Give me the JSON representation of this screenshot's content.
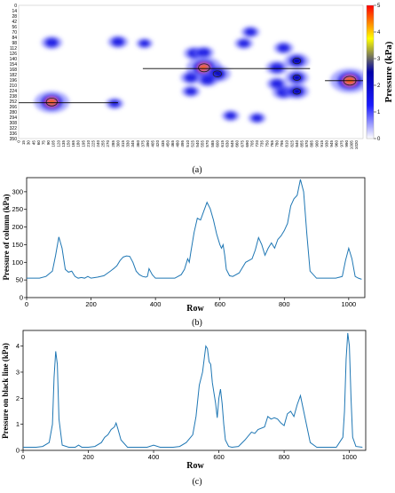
{
  "chart_data": [
    {
      "panel": "(a)",
      "type": "heatmap",
      "colorbar_label": "Pressure (kPa)",
      "colorbar_range": [
        0,
        5
      ],
      "colorbar_ticks": [
        0,
        1,
        2,
        3,
        4,
        5
      ],
      "colormap": [
        "#ffffff",
        "#1a1aff",
        "#0000a8",
        "#ffff00",
        "#ff0000"
      ],
      "y_ticks": [
        0,
        14,
        28,
        42,
        56,
        70,
        84,
        98,
        112,
        126,
        140,
        154,
        168,
        182,
        196,
        210,
        224,
        238,
        252,
        266,
        280,
        294,
        308,
        322,
        336,
        350
      ],
      "x_ticks": [
        0,
        15,
        30,
        45,
        60,
        75,
        90,
        105,
        120,
        135,
        150,
        165,
        180,
        195,
        210,
        225,
        240,
        255,
        270,
        285,
        300,
        315,
        330,
        345,
        360,
        375,
        390,
        405,
        420,
        435,
        450,
        465,
        480,
        495,
        510,
        525,
        540,
        555,
        570,
        585,
        600,
        615,
        630,
        645,
        660,
        675,
        690,
        705,
        720,
        735,
        750,
        765,
        780,
        795,
        810,
        825,
        840,
        855,
        870,
        885,
        900,
        915,
        930,
        945,
        960,
        975,
        990,
        1005,
        1020
      ],
      "xlim": [
        0,
        1040
      ],
      "ylim": [
        0,
        350
      ],
      "hotspots": [
        {
          "x": 100,
          "y": 254,
          "value": 3.8
        },
        {
          "x": 100,
          "y": 98,
          "value": 1.6
        },
        {
          "x": 300,
          "y": 96,
          "value": 1.5
        },
        {
          "x": 290,
          "y": 258,
          "value": 1.1
        },
        {
          "x": 560,
          "y": 164,
          "value": 3.9
        },
        {
          "x": 600,
          "y": 180,
          "value": 2.5
        },
        {
          "x": 530,
          "y": 126,
          "value": 1.6
        },
        {
          "x": 560,
          "y": 124,
          "value": 1.4
        },
        {
          "x": 520,
          "y": 190,
          "value": 1.6
        },
        {
          "x": 570,
          "y": 196,
          "value": 1.7
        },
        {
          "x": 520,
          "y": 226,
          "value": 1.2
        },
        {
          "x": 680,
          "y": 100,
          "value": 1.2
        },
        {
          "x": 700,
          "y": 70,
          "value": 1.2
        },
        {
          "x": 640,
          "y": 290,
          "value": 1.1
        },
        {
          "x": 720,
          "y": 296,
          "value": 1.1
        },
        {
          "x": 800,
          "y": 112,
          "value": 1.4
        },
        {
          "x": 840,
          "y": 146,
          "value": 2.2
        },
        {
          "x": 780,
          "y": 164,
          "value": 1.8
        },
        {
          "x": 840,
          "y": 190,
          "value": 2.0
        },
        {
          "x": 800,
          "y": 228,
          "value": 1.9
        },
        {
          "x": 840,
          "y": 226,
          "value": 2.1
        },
        {
          "x": 780,
          "y": 206,
          "value": 1.5
        },
        {
          "x": 1000,
          "y": 198,
          "value": 4.5
        },
        {
          "x": 380,
          "y": 100,
          "value": 0.9
        }
      ],
      "black_lines": [
        {
          "y": 256,
          "x": [
            0,
            300
          ]
        },
        {
          "y": 166,
          "x": [
            375,
            880
          ]
        },
        {
          "y": 198,
          "x": [
            925,
            1040
          ]
        }
      ]
    },
    {
      "panel": "(b)",
      "type": "line",
      "xlabel": "Row",
      "ylabel": "Pressure of column (kPa)",
      "xlim": [
        0,
        1050
      ],
      "ylim": [
        0,
        340
      ],
      "xticks": [
        0,
        200,
        400,
        600,
        800,
        1000
      ],
      "yticks": [
        0,
        50,
        100,
        150,
        200,
        250,
        300
      ],
      "color": "#1f77b4",
      "x": [
        0,
        20,
        40,
        60,
        80,
        90,
        100,
        110,
        120,
        130,
        140,
        150,
        160,
        170,
        180,
        190,
        200,
        220,
        240,
        260,
        270,
        280,
        290,
        300,
        310,
        320,
        330,
        340,
        350,
        360,
        370,
        375,
        380,
        390,
        400,
        420,
        440,
        460,
        480,
        490,
        500,
        505,
        510,
        520,
        530,
        540,
        550,
        560,
        570,
        580,
        590,
        600,
        605,
        610,
        615,
        620,
        630,
        640,
        660,
        680,
        700,
        710,
        720,
        730,
        740,
        750,
        760,
        770,
        780,
        790,
        800,
        810,
        820,
        830,
        840,
        850,
        860,
        870,
        880,
        900,
        920,
        940,
        960,
        980,
        990,
        1000,
        1010,
        1020,
        1030,
        1040
      ],
      "values": [
        55,
        55,
        55,
        60,
        75,
        120,
        172,
        140,
        80,
        72,
        75,
        60,
        55,
        57,
        55,
        60,
        55,
        58,
        62,
        75,
        82,
        90,
        105,
        115,
        118,
        117,
        100,
        75,
        65,
        60,
        58,
        60,
        82,
        65,
        55,
        55,
        55,
        55,
        65,
        80,
        110,
        100,
        130,
        185,
        225,
        220,
        245,
        270,
        252,
        220,
        180,
        150,
        140,
        150,
        120,
        80,
        62,
        60,
        70,
        100,
        110,
        135,
        170,
        150,
        120,
        140,
        155,
        140,
        165,
        175,
        190,
        210,
        260,
        280,
        290,
        335,
        300,
        180,
        75,
        55,
        55,
        55,
        55,
        60,
        105,
        140,
        110,
        60,
        55,
        52
      ]
    },
    {
      "panel": "(c)",
      "type": "line",
      "xlabel": "Row",
      "ylabel": "Pressure on black line (kPa)",
      "xlim": [
        0,
        1050
      ],
      "ylim": [
        0,
        4.6
      ],
      "xticks": [
        0,
        200,
        400,
        600,
        800,
        1000
      ],
      "yticks": [
        0,
        1,
        2,
        3,
        4
      ],
      "color": "#1f77b4",
      "x": [
        0,
        20,
        40,
        60,
        80,
        90,
        95,
        100,
        105,
        110,
        120,
        140,
        160,
        170,
        180,
        200,
        220,
        240,
        250,
        260,
        270,
        280,
        285,
        290,
        300,
        320,
        340,
        360,
        380,
        400,
        420,
        440,
        460,
        480,
        500,
        520,
        530,
        540,
        550,
        560,
        565,
        570,
        575,
        580,
        590,
        595,
        600,
        605,
        610,
        615,
        620,
        630,
        640,
        660,
        680,
        700,
        710,
        720,
        740,
        750,
        760,
        770,
        780,
        790,
        800,
        810,
        820,
        830,
        840,
        850,
        860,
        870,
        880,
        900,
        920,
        940,
        960,
        980,
        985,
        990,
        995,
        1000,
        1005,
        1010,
        1020,
        1040
      ],
      "values": [
        0.12,
        0.12,
        0.12,
        0.15,
        0.3,
        1.0,
        2.8,
        3.8,
        3.3,
        1.2,
        0.2,
        0.12,
        0.12,
        0.2,
        0.12,
        0.12,
        0.15,
        0.3,
        0.5,
        0.6,
        0.8,
        0.9,
        1.05,
        0.85,
        0.4,
        0.12,
        0.12,
        0.12,
        0.12,
        0.2,
        0.12,
        0.12,
        0.12,
        0.15,
        0.3,
        0.6,
        1.3,
        2.5,
        3.0,
        4.0,
        3.9,
        3.4,
        3.3,
        2.6,
        1.8,
        1.25,
        2.0,
        2.35,
        1.8,
        1.0,
        0.4,
        0.15,
        0.12,
        0.15,
        0.4,
        0.7,
        0.65,
        0.8,
        0.9,
        1.3,
        1.2,
        1.25,
        1.2,
        1.05,
        0.95,
        1.4,
        1.5,
        1.3,
        1.75,
        2.1,
        1.5,
        0.9,
        0.3,
        0.12,
        0.12,
        0.12,
        0.12,
        0.5,
        1.5,
        3.5,
        4.5,
        4.0,
        2.0,
        0.5,
        0.15,
        0.12
      ]
    }
  ],
  "captions": [
    "(a)",
    "(b)",
    "(c)"
  ]
}
